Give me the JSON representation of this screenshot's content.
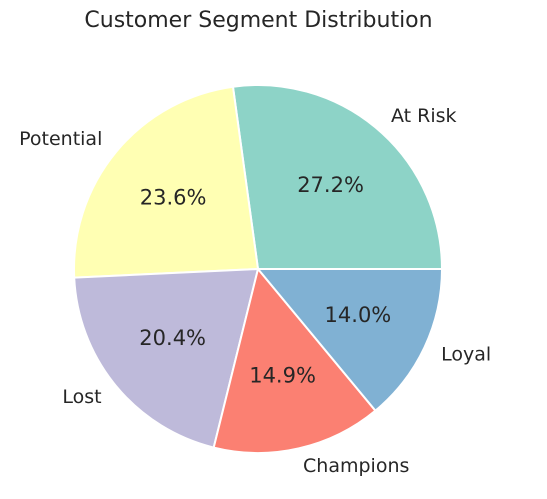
{
  "chart_data": {
    "type": "pie",
    "title": "Customer Segment Distribution",
    "slices": [
      {
        "label": "At Risk",
        "value": 27.2,
        "pct_label": "27.2%",
        "color": "#8dd3c7"
      },
      {
        "label": "Potential",
        "value": 23.6,
        "pct_label": "23.6%",
        "color": "#ffffb3"
      },
      {
        "label": "Lost",
        "value": 20.4,
        "pct_label": "20.4%",
        "color": "#bebada"
      },
      {
        "label": "Champions",
        "value": 14.9,
        "pct_label": "14.9%",
        "color": "#fb8072"
      },
      {
        "label": "Loyal",
        "value": 14.0,
        "pct_label": "14.0%",
        "color": "#80b1d3"
      }
    ],
    "start_angle_deg": 0,
    "direction": "counterclockwise",
    "legend": "none"
  }
}
